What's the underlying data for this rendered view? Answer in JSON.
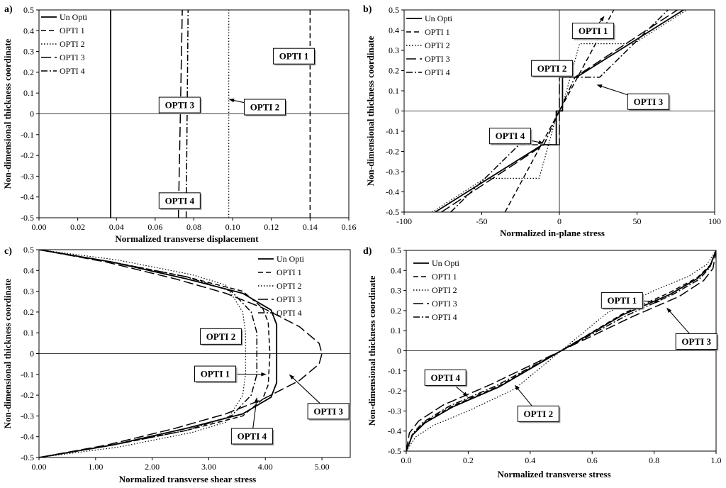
{
  "figure": {
    "legend_labels": [
      "Un Opti",
      "OPTI 1",
      "OPTI 2",
      "OPTI 3",
      "OPTI 4"
    ],
    "styles": {
      "Un Opti": "solid",
      "OPTI 1": "dash",
      "OPTI 2": "dot",
      "OPTI 3": "longdash",
      "OPTI 4": "dashdot"
    }
  },
  "chart_data": [
    {
      "id": "a",
      "type": "line",
      "panel_letter": "a)",
      "xlabel": "Normalized transverse displacement",
      "ylabel": "Non-dimensional thickness coordinate",
      "xlim": [
        0,
        0.16
      ],
      "ylim": [
        -0.5,
        0.5
      ],
      "xticks": [
        0,
        0.02,
        0.04,
        0.06,
        0.08,
        0.1,
        0.12,
        0.14,
        0.16
      ],
      "xtick_labels": [
        "0.00",
        "0.02",
        "0.04",
        "0.06",
        "0.08",
        "0.10",
        "0.12",
        "0.14",
        "0.16"
      ],
      "yticks": [
        -0.5,
        -0.4,
        -0.3,
        -0.2,
        -0.1,
        0,
        0.1,
        0.2,
        0.3,
        0.4,
        0.5
      ],
      "ytick_labels": [
        "-0.5",
        "-0.4",
        "-0.3",
        "-0.2",
        "-0.1",
        "0",
        "0.1",
        "0.2",
        "0.3",
        "0.4",
        "0.5"
      ],
      "legend_position": "top-left",
      "series": [
        {
          "name": "Un Opti",
          "points": [
            [
              0.037,
              -0.5
            ],
            [
              0.037,
              0.5
            ]
          ]
        },
        {
          "name": "OPTI 1",
          "points": [
            [
              0.14,
              -0.5
            ],
            [
              0.14,
              0.5
            ]
          ]
        },
        {
          "name": "OPTI 2",
          "points": [
            [
              0.098,
              -0.5
            ],
            [
              0.098,
              0.5
            ]
          ]
        },
        {
          "name": "OPTI 3",
          "points": [
            [
              0.072,
              -0.5
            ],
            [
              0.073,
              0.0
            ],
            [
              0.074,
              0.5
            ]
          ]
        },
        {
          "name": "OPTI 4",
          "points": [
            [
              0.076,
              -0.5
            ],
            [
              0.077,
              0.5
            ]
          ]
        }
      ],
      "annotations": [
        {
          "text": "OPTI 1",
          "box": [
            0.121,
            0.315
          ],
          "target": [
            0.14,
            0.3
          ]
        },
        {
          "text": "OPTI 2",
          "box": [
            0.106,
            0.07
          ],
          "target": [
            0.098,
            0.07
          ]
        },
        {
          "text": "OPTI 3",
          "box": [
            0.062,
            0.08
          ],
          "target": [
            0.073,
            0.05
          ]
        },
        {
          "text": "OPTI 4",
          "box": [
            0.062,
            -0.38
          ],
          "target": [
            0.076,
            -0.42
          ]
        }
      ]
    },
    {
      "id": "b",
      "type": "line",
      "panel_letter": "b)",
      "xlabel": "Normalized in-plane stress",
      "ylabel": "Non-dimensional thickness coordinate",
      "xlim": [
        -100,
        100
      ],
      "ylim": [
        -0.5,
        0.5
      ],
      "xticks": [
        -100,
        -50,
        0,
        50,
        100
      ],
      "xtick_labels": [
        "-100",
        "-50",
        "0",
        "50",
        "100"
      ],
      "yticks": [
        -0.5,
        -0.4,
        -0.3,
        -0.2,
        -0.1,
        0,
        0.1,
        0.2,
        0.3,
        0.4,
        0.5
      ],
      "ytick_labels": [
        "-0.5",
        "-0.4",
        "-0.3",
        "-0.2",
        "-0.1",
        "0",
        "0.1",
        "0.2",
        "0.3",
        "0.4",
        "0.5"
      ],
      "legend_position": "top-left",
      "series": [
        {
          "name": "Un Opti",
          "points": [
            [
              -80,
              -0.5
            ],
            [
              -11,
              -0.167
            ],
            [
              -2,
              -0.167
            ],
            [
              -2,
              0
            ],
            [
              2,
              0
            ],
            [
              2,
              0.167
            ],
            [
              11,
              0.167
            ],
            [
              80,
              0.5
            ]
          ]
        },
        {
          "name": "OPTI 1",
          "points": [
            [
              -35,
              -0.5
            ],
            [
              0,
              0
            ],
            [
              35,
              0.5
            ]
          ]
        },
        {
          "name": "OPTI 2",
          "points": [
            [
              -82,
              -0.5
            ],
            [
              -48,
              -0.333
            ],
            [
              -13,
              -0.333
            ],
            [
              -1,
              0
            ],
            [
              1,
              0
            ],
            [
              13,
              0.333
            ],
            [
              48,
              0.333
            ],
            [
              82,
              0.5
            ]
          ]
        },
        {
          "name": "OPTI 3",
          "points": [
            [
              -76,
              -0.5
            ],
            [
              -10,
              -0.167
            ],
            [
              0,
              -0.167
            ],
            [
              0,
              0.167
            ],
            [
              10,
              0.167
            ],
            [
              76,
              0.5
            ]
          ]
        },
        {
          "name": "OPTI 4",
          "points": [
            [
              -70,
              -0.5
            ],
            [
              -26,
              -0.167
            ],
            [
              -10,
              -0.167
            ],
            [
              0,
              0
            ],
            [
              10,
              0.167
            ],
            [
              26,
              0.167
            ],
            [
              70,
              0.5
            ]
          ]
        }
      ],
      "annotations": [
        {
          "text": "OPTI 1",
          "box": [
            8.5,
            0.435
          ],
          "target": [
            29,
            0.47
          ]
        },
        {
          "text": "OPTI 2",
          "box": [
            -18,
            0.25
          ],
          "target": [
            2,
            0.18
          ]
        },
        {
          "text": "OPTI 3",
          "box": [
            44,
            0.085
          ],
          "target": [
            24,
            0.13
          ]
        },
        {
          "text": "OPTI 4",
          "box": [
            -45,
            -0.085
          ],
          "target": [
            -10,
            -0.16
          ]
        }
      ]
    },
    {
      "id": "c",
      "type": "line",
      "panel_letter": "c)",
      "xlabel": "Normalized transverse shear stress",
      "ylabel": "Non-dimensional thickness coordinate",
      "xlim": [
        0,
        5.5
      ],
      "ylim": [
        -0.5,
        0.5
      ],
      "xticks": [
        0,
        1,
        2,
        3,
        4,
        5
      ],
      "xtick_labels": [
        "0.00",
        "1.00",
        "2.00",
        "3.00",
        "4.00",
        "5.00"
      ],
      "yticks": [
        -0.5,
        -0.4,
        -0.3,
        -0.2,
        -0.1,
        0,
        0.1,
        0.2,
        0.3,
        0.4,
        0.5
      ],
      "ytick_labels": [
        "-0.5",
        "-0.4",
        "-0.3",
        "-0.2",
        "-0.1",
        "0",
        "0.1",
        "0.2",
        "0.3",
        "0.4",
        "0.5"
      ],
      "legend_position": "top-right",
      "series": [
        {
          "name": "Un Opti",
          "points": [
            [
              0,
              0.5
            ],
            [
              1.3,
              0.44
            ],
            [
              2.6,
              0.36
            ],
            [
              3.6,
              0.29
            ],
            [
              4.1,
              0.21
            ],
            [
              4.2,
              0.14
            ],
            [
              4.2,
              0
            ],
            [
              4.2,
              -0.14
            ],
            [
              4.1,
              -0.21
            ],
            [
              3.6,
              -0.29
            ],
            [
              2.6,
              -0.36
            ],
            [
              1.3,
              -0.44
            ],
            [
              0,
              -0.5
            ]
          ]
        },
        {
          "name": "OPTI 1",
          "points": [
            [
              0,
              0.5
            ],
            [
              1.3,
              0.44
            ],
            [
              2.6,
              0.37
            ],
            [
              3.6,
              0.3
            ],
            [
              3.95,
              0.22
            ],
            [
              4.05,
              0.15
            ],
            [
              4.08,
              0
            ],
            [
              4.05,
              -0.15
            ],
            [
              3.95,
              -0.22
            ],
            [
              3.6,
              -0.3
            ],
            [
              2.6,
              -0.37
            ],
            [
              1.3,
              -0.44
            ],
            [
              0,
              -0.5
            ]
          ]
        },
        {
          "name": "OPTI 2",
          "points": [
            [
              0,
              0.5
            ],
            [
              1.4,
              0.45
            ],
            [
              2.7,
              0.38
            ],
            [
              3.3,
              0.33
            ],
            [
              3.6,
              0.2
            ],
            [
              3.65,
              0.1
            ],
            [
              3.65,
              0
            ],
            [
              3.65,
              -0.1
            ],
            [
              3.6,
              -0.2
            ],
            [
              3.3,
              -0.33
            ],
            [
              2.7,
              -0.38
            ],
            [
              1.4,
              -0.45
            ],
            [
              0,
              -0.5
            ]
          ]
        },
        {
          "name": "OPTI 3",
          "points": [
            [
              0,
              0.5
            ],
            [
              1.2,
              0.44
            ],
            [
              2.4,
              0.36
            ],
            [
              3.3,
              0.29
            ],
            [
              3.95,
              0.22
            ],
            [
              4.6,
              0.13
            ],
            [
              4.95,
              0.05
            ],
            [
              5.0,
              0
            ],
            [
              4.95,
              -0.05
            ],
            [
              4.6,
              -0.13
            ],
            [
              3.95,
              -0.22
            ],
            [
              3.3,
              -0.29
            ],
            [
              2.4,
              -0.36
            ],
            [
              1.2,
              -0.44
            ],
            [
              0,
              -0.5
            ]
          ]
        },
        {
          "name": "OPTI 4",
          "points": [
            [
              0,
              0.5
            ],
            [
              1.3,
              0.44
            ],
            [
              2.6,
              0.37
            ],
            [
              3.4,
              0.3
            ],
            [
              3.75,
              0.2
            ],
            [
              3.85,
              0.1
            ],
            [
              3.85,
              0
            ],
            [
              3.85,
              -0.1
            ],
            [
              3.75,
              -0.2
            ],
            [
              3.4,
              -0.3
            ],
            [
              2.6,
              -0.37
            ],
            [
              1.3,
              -0.44
            ],
            [
              0,
              -0.5
            ]
          ]
        }
      ],
      "annotations": [
        {
          "text": "OPTI 2",
          "box": [
            2.85,
            0.12
          ],
          "target": [
            3.6,
            0.11
          ]
        },
        {
          "text": "OPTI 1",
          "box": [
            2.75,
            -0.06
          ],
          "target": [
            4.02,
            -0.1
          ]
        },
        {
          "text": "OPTI 3",
          "box": [
            4.75,
            -0.24
          ],
          "target": [
            4.42,
            -0.1
          ]
        },
        {
          "text": "OPTI 4",
          "box": [
            3.4,
            -0.36
          ],
          "target": [
            3.85,
            -0.21
          ]
        }
      ]
    },
    {
      "id": "d",
      "type": "line",
      "panel_letter": "d)",
      "xlabel": "Normalized transverse stress",
      "ylabel": "Non-dimensional thickness coordinate",
      "xlim": [
        0,
        1
      ],
      "ylim": [
        -0.5,
        0.5
      ],
      "xticks": [
        0,
        0.2,
        0.4,
        0.6,
        0.8,
        1
      ],
      "xtick_labels": [
        "0.0",
        "0.2",
        "0.4",
        "0.6",
        "0.8",
        "1.0"
      ],
      "yticks": [
        -0.5,
        -0.4,
        -0.3,
        -0.2,
        -0.1,
        0,
        0.1,
        0.2,
        0.3,
        0.4,
        0.5
      ],
      "ytick_labels": [
        "-0.5",
        "-0.4",
        "-0.3",
        "-0.2",
        "-0.1",
        "0",
        "0.1",
        "0.2",
        "0.3",
        "0.4",
        "0.5"
      ],
      "legend_position": "top-left",
      "series": [
        {
          "name": "Un Opti",
          "points": [
            [
              0,
              -0.5
            ],
            [
              0.02,
              -0.42
            ],
            [
              0.06,
              -0.36
            ],
            [
              0.15,
              -0.28
            ],
            [
              0.3,
              -0.18
            ],
            [
              0.5,
              0
            ],
            [
              0.7,
              0.18
            ],
            [
              0.85,
              0.28
            ],
            [
              0.94,
              0.36
            ],
            [
              0.98,
              0.42
            ],
            [
              1,
              0.5
            ]
          ]
        },
        {
          "name": "OPTI 1",
          "points": [
            [
              0,
              -0.5
            ],
            [
              0.02,
              -0.42
            ],
            [
              0.06,
              -0.355
            ],
            [
              0.15,
              -0.275
            ],
            [
              0.3,
              -0.175
            ],
            [
              0.5,
              0
            ],
            [
              0.7,
              0.185
            ],
            [
              0.85,
              0.29
            ],
            [
              0.94,
              0.365
            ],
            [
              0.98,
              0.425
            ],
            [
              1,
              0.5
            ]
          ]
        },
        {
          "name": "OPTI 2",
          "points": [
            [
              0,
              -0.5
            ],
            [
              0.03,
              -0.43
            ],
            [
              0.09,
              -0.37
            ],
            [
              0.2,
              -0.3
            ],
            [
              0.35,
              -0.19
            ],
            [
              0.5,
              0
            ],
            [
              0.65,
              0.19
            ],
            [
              0.8,
              0.3
            ],
            [
              0.91,
              0.37
            ],
            [
              0.97,
              0.43
            ],
            [
              1,
              0.5
            ]
          ]
        },
        {
          "name": "OPTI 3",
          "points": [
            [
              0,
              -0.5
            ],
            [
              0.01,
              -0.41
            ],
            [
              0.04,
              -0.35
            ],
            [
              0.12,
              -0.27
            ],
            [
              0.27,
              -0.17
            ],
            [
              0.5,
              0
            ],
            [
              0.73,
              0.17
            ],
            [
              0.88,
              0.27
            ],
            [
              0.96,
              0.35
            ],
            [
              0.99,
              0.41
            ],
            [
              1,
              0.5
            ]
          ]
        },
        {
          "name": "OPTI 4",
          "points": [
            [
              0,
              -0.5
            ],
            [
              0.02,
              -0.415
            ],
            [
              0.055,
              -0.355
            ],
            [
              0.14,
              -0.275
            ],
            [
              0.29,
              -0.175
            ],
            [
              0.5,
              0
            ],
            [
              0.71,
              0.175
            ],
            [
              0.86,
              0.28
            ],
            [
              0.945,
              0.355
            ],
            [
              0.98,
              0.415
            ],
            [
              1,
              0.5
            ]
          ]
        }
      ],
      "annotations": [
        {
          "text": "OPTI 1",
          "box": [
            0.63,
            0.29
          ],
          "target": [
            0.82,
            0.245
          ]
        },
        {
          "text": "OPTI 3",
          "box": [
            0.87,
            0.085
          ],
          "target": [
            0.84,
            0.215
          ]
        },
        {
          "text": "OPTI 4",
          "box": [
            0.06,
            -0.095
          ],
          "target": [
            0.2,
            -0.23
          ]
        },
        {
          "text": "OPTI 2",
          "box": [
            0.36,
            -0.275
          ],
          "target": [
            0.35,
            -0.17
          ]
        }
      ]
    }
  ]
}
